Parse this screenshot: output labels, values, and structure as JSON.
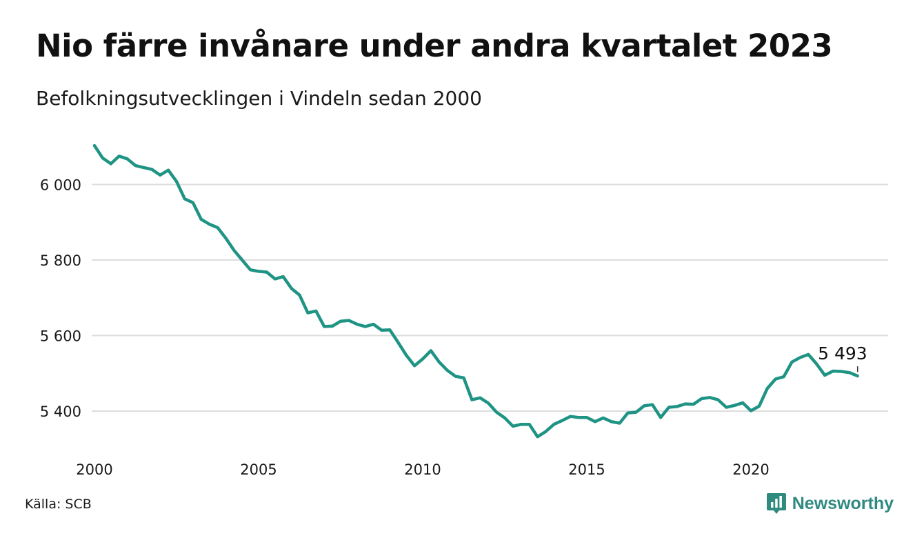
{
  "header": {
    "title": "Nio färre invånare under andra kvartalet 2023",
    "subtitle": "Befolkningsutvecklingen i Vindeln sedan 2000"
  },
  "footer": {
    "source": "Källa: SCB",
    "brand": "Newsworthy",
    "brand_icon": "newsworthy-logo-icon"
  },
  "colors": {
    "line": "#1f9484",
    "grid": "#dddddd",
    "text": "#111111",
    "brand": "#2f8a80"
  },
  "chart_data": {
    "type": "line",
    "title": "Nio färre invånare under andra kvartalet 2023",
    "subtitle": "Befolkningsutvecklingen i Vindeln sedan 2000",
    "xlabel": "",
    "ylabel": "",
    "x_unit": "quarter",
    "xlim": [
      2000,
      2024
    ],
    "ylim": [
      5310,
      6120
    ],
    "y_ticks": [
      5400,
      5600,
      5800,
      6000
    ],
    "y_tick_labels": [
      "5 400",
      "5 600",
      "5 800",
      "6 000"
    ],
    "x_ticks": [
      2000,
      2005,
      2010,
      2015,
      2020
    ],
    "x_tick_labels": [
      "2000",
      "2005",
      "2010",
      "2015",
      "2020"
    ],
    "grid": "horizontal",
    "legend": "none",
    "annotation": {
      "text": "5 493",
      "x": "2023 Q2",
      "y": 5493
    },
    "series": [
      {
        "x": [
          "2000 Q1",
          "2000 Q2",
          "2000 Q3",
          "2000 Q4",
          "2001 Q1",
          "2001 Q2",
          "2001 Q3",
          "2001 Q4",
          "2002 Q1",
          "2002 Q2",
          "2002 Q3",
          "2002 Q4",
          "2003 Q1",
          "2003 Q2",
          "2003 Q3",
          "2003 Q4",
          "2004 Q1",
          "2004 Q2",
          "2004 Q3",
          "2004 Q4",
          "2005 Q1",
          "2005 Q2",
          "2005 Q3",
          "2005 Q4",
          "2006 Q1",
          "2006 Q2",
          "2006 Q3",
          "2006 Q4",
          "2007 Q1",
          "2007 Q2",
          "2007 Q3",
          "2007 Q4",
          "2008 Q1",
          "2008 Q2",
          "2008 Q3",
          "2008 Q4",
          "2009 Q1",
          "2009 Q2",
          "2009 Q3",
          "2009 Q4",
          "2010 Q1",
          "2010 Q2",
          "2010 Q3",
          "2010 Q4",
          "2011 Q1",
          "2011 Q2",
          "2011 Q3",
          "2011 Q4",
          "2012 Q1",
          "2012 Q2",
          "2012 Q3",
          "2012 Q4",
          "2013 Q1",
          "2013 Q2",
          "2013 Q3",
          "2013 Q4",
          "2014 Q1",
          "2014 Q2",
          "2014 Q3",
          "2014 Q4",
          "2015 Q1",
          "2015 Q2",
          "2015 Q3",
          "2015 Q4",
          "2016 Q1",
          "2016 Q2",
          "2016 Q3",
          "2016 Q4",
          "2017 Q1",
          "2017 Q2",
          "2017 Q3",
          "2017 Q4",
          "2018 Q1",
          "2018 Q2",
          "2018 Q3",
          "2018 Q4",
          "2019 Q1",
          "2019 Q2",
          "2019 Q3",
          "2019 Q4",
          "2020 Q1",
          "2020 Q2",
          "2020 Q3",
          "2020 Q4",
          "2021 Q1",
          "2021 Q2",
          "2021 Q3",
          "2021 Q4",
          "2022 Q1",
          "2022 Q2",
          "2022 Q3",
          "2022 Q4",
          "2023 Q1",
          "2023 Q2"
        ],
        "values": [
          6103,
          6070,
          6055,
          6075,
          6068,
          6050,
          6045,
          6040,
          6025,
          6038,
          6008,
          5962,
          5952,
          5908,
          5895,
          5886,
          5858,
          5826,
          5800,
          5774,
          5770,
          5768,
          5750,
          5756,
          5725,
          5707,
          5660,
          5665,
          5624,
          5625,
          5638,
          5640,
          5630,
          5624,
          5630,
          5614,
          5615,
          5582,
          5548,
          5520,
          5538,
          5560,
          5530,
          5508,
          5492,
          5488,
          5430,
          5435,
          5421,
          5397,
          5382,
          5360,
          5365,
          5365,
          5332,
          5346,
          5365,
          5375,
          5386,
          5383,
          5383,
          5372,
          5382,
          5372,
          5368,
          5395,
          5397,
          5414,
          5417,
          5383,
          5410,
          5412,
          5419,
          5418,
          5433,
          5436,
          5430,
          5410,
          5415,
          5422,
          5401,
          5413,
          5460,
          5485,
          5491,
          5530,
          5542,
          5550,
          5525,
          5495,
          5506,
          5505,
          5502,
          5493
        ]
      }
    ]
  }
}
